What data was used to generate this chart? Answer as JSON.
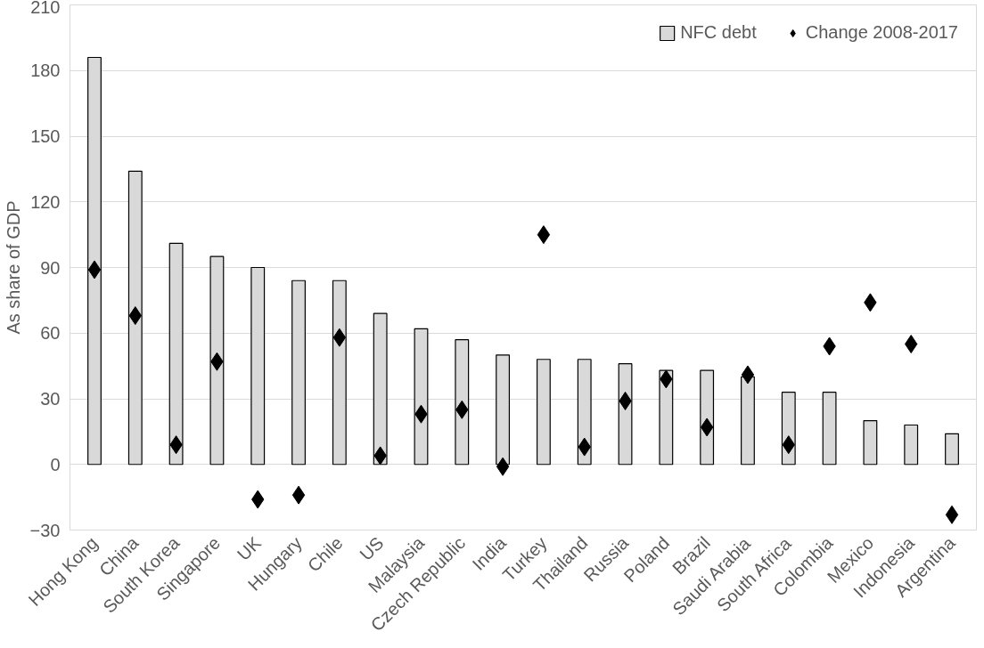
{
  "chart_data": {
    "type": "bar",
    "ylabel": "As share of GDP",
    "categories": [
      "Hong Kong",
      "China",
      "South Korea",
      "Singapore",
      "UK",
      "Hungary",
      "Chile",
      "US",
      "Malaysia",
      "Czech Republic",
      "India",
      "Turkey",
      "Thailand",
      "Russia",
      "Poland",
      "Brazil",
      "Saudi Arabia",
      "South Africa",
      "Colombia",
      "Mexico",
      "Indonesia",
      "Argentina"
    ],
    "series": [
      {
        "name": "NFC debt",
        "color": "#d9d9d9",
        "values": [
          186,
          134,
          101,
          95,
          90,
          84,
          84,
          69,
          62,
          57,
          50,
          48,
          48,
          46,
          43,
          43,
          40,
          33,
          33,
          20,
          18,
          14
        ]
      },
      {
        "name": "Change 2008-2017",
        "type": "scatter",
        "marker": "diamond",
        "color": "#000000",
        "values": [
          89,
          68,
          9,
          47,
          -16,
          -14,
          58,
          4,
          23,
          25,
          -1,
          105,
          8,
          29,
          39,
          17,
          41,
          9,
          54,
          74,
          55,
          -23
        ]
      }
    ],
    "ylim": [
      -30,
      210
    ],
    "yticks": [
      -30,
      0,
      30,
      60,
      90,
      120,
      150,
      180,
      210
    ],
    "grid": "y",
    "legend": "top right"
  }
}
